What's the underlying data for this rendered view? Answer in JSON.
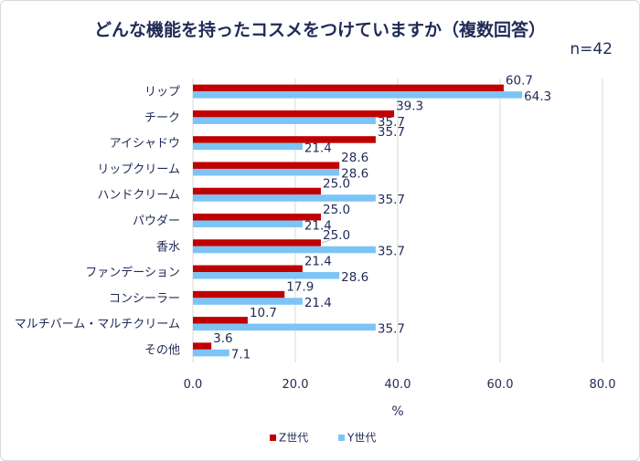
{
  "title": "どんな機能を持ったコスメをつけていますか（複数回答）",
  "sample_size": "n=42",
  "chart_data": {
    "type": "bar",
    "orientation": "horizontal",
    "title": "どんな機能を持ったコスメをつけていますか（複数回答）",
    "xlabel": "%",
    "xlim": [
      0,
      80
    ],
    "xticks": [
      "0.0",
      "20.0",
      "40.0",
      "60.0",
      "80.0"
    ],
    "xtick_values": [
      0,
      20,
      40,
      60,
      80
    ],
    "grid": "vertical",
    "legend": "bottom",
    "categories": [
      "リップ",
      "チーク",
      "アイシャドウ",
      "リップクリーム",
      "ハンドクリーム",
      "パウダー",
      "香水",
      "ファンデーション",
      "コンシーラー",
      "マルチバーム・マルチクリーム",
      "その他"
    ],
    "series": [
      {
        "name": "Z世代",
        "color": "#c00000",
        "values": [
          60.7,
          39.3,
          35.7,
          28.6,
          25.0,
          25.0,
          25.0,
          21.4,
          17.9,
          10.7,
          3.6
        ],
        "labels": [
          "60.7",
          "39.3",
          "35.7",
          "28.6",
          "25.0",
          "25.0",
          "25.0",
          "21.4",
          "17.9",
          "10.7",
          "3.6"
        ]
      },
      {
        "name": "Y世代",
        "color": "#7cc4f5",
        "values": [
          64.3,
          35.7,
          21.4,
          28.6,
          35.7,
          21.4,
          35.7,
          28.6,
          21.4,
          35.7,
          7.1
        ],
        "labels": [
          "64.3",
          "35.7",
          "21.4",
          "28.6",
          "35.7",
          "21.4",
          "35.7",
          "28.6",
          "21.4",
          "35.7",
          "7.1"
        ]
      }
    ]
  }
}
